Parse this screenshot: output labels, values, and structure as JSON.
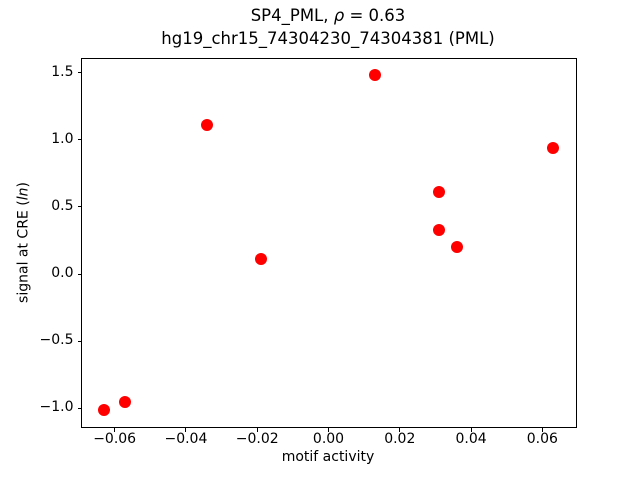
{
  "chart_data": {
    "type": "scatter",
    "title": {
      "line1_prefix": "SP4_PML, ",
      "line1_rho": "ρ",
      "line1_suffix": " = 0.63",
      "line2": "hg19_chr15_74304230_74304381 (PML)"
    },
    "xlabel": "motif activity",
    "ylabel_prefix": "signal at CRE (",
    "ylabel_italic": "ln",
    "ylabel_suffix": ")",
    "xlim": [
      -0.0693,
      0.0693
    ],
    "ylim": [
      -1.135,
      1.605
    ],
    "grid": false,
    "legend": false,
    "marker_color": "#ff0000",
    "marker_size_px": 12,
    "axis_color": "#000000",
    "background_color": "#ffffff",
    "xticks": [
      {
        "value": -0.06,
        "label": "−0.06"
      },
      {
        "value": -0.04,
        "label": "−0.04"
      },
      {
        "value": -0.02,
        "label": "−0.02"
      },
      {
        "value": 0.0,
        "label": "0.00"
      },
      {
        "value": 0.02,
        "label": "0.02"
      },
      {
        "value": 0.04,
        "label": "0.04"
      },
      {
        "value": 0.06,
        "label": "0.06"
      }
    ],
    "yticks": [
      {
        "value": -1.0,
        "label": "−1.0"
      },
      {
        "value": -0.5,
        "label": "−0.5"
      },
      {
        "value": 0.0,
        "label": "0.0"
      },
      {
        "value": 0.5,
        "label": "0.5"
      },
      {
        "value": 1.0,
        "label": "1.0"
      },
      {
        "value": 1.5,
        "label": "1.5"
      }
    ],
    "points": [
      [
        -0.063,
        -1.01
      ],
      [
        -0.057,
        -0.95
      ],
      [
        -0.034,
        1.11
      ],
      [
        -0.019,
        0.11
      ],
      [
        0.013,
        1.48
      ],
      [
        0.031,
        0.61
      ],
      [
        0.031,
        0.33
      ],
      [
        0.036,
        0.2
      ],
      [
        0.063,
        0.94
      ]
    ]
  }
}
